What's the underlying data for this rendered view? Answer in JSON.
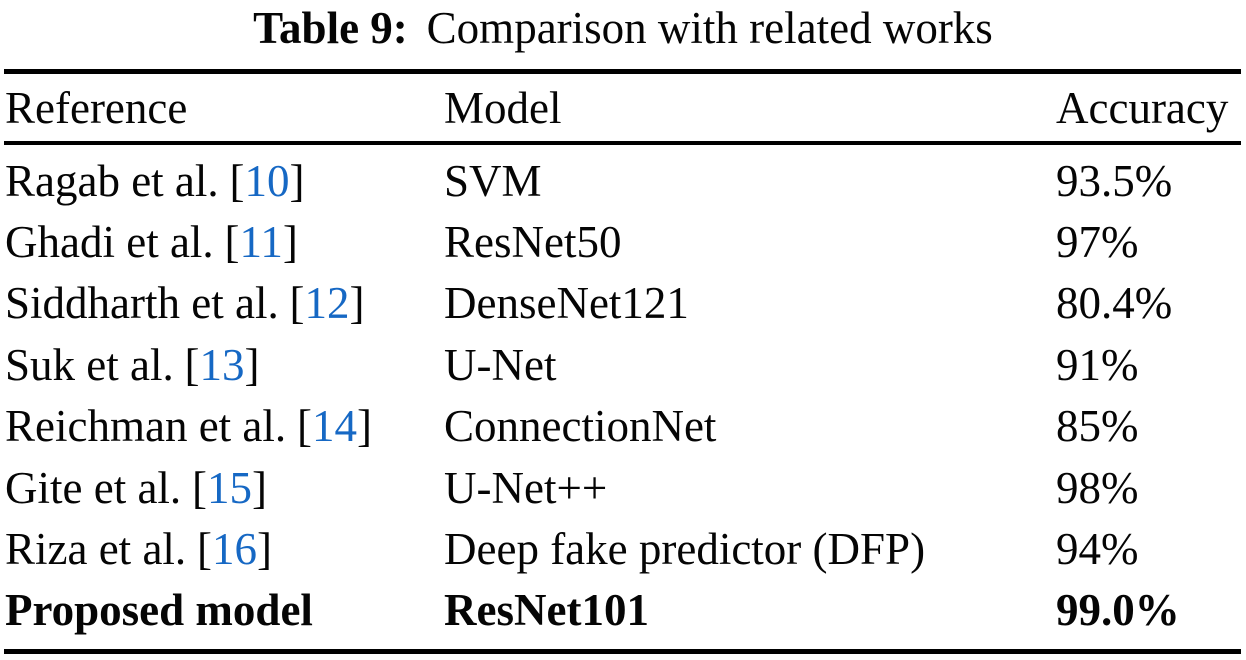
{
  "caption": {
    "label": "Table 9:",
    "text": "Comparison with related works"
  },
  "colors": {
    "citation_blue": "#1668c4",
    "text": "#050505",
    "rule": "#000000",
    "background": "#ffffff"
  },
  "chart_data": {
    "type": "table",
    "title": "Table 9: Comparison with related works",
    "columns": [
      "Reference",
      "Model",
      "Accuracy"
    ],
    "rows": [
      [
        "Ragab et al. [10]",
        "SVM",
        "93.5%"
      ],
      [
        "Ghadi et al. [11]",
        "ResNet50",
        "97%"
      ],
      [
        "Siddharth et al. [12]",
        "DenseNet121",
        "80.4%"
      ],
      [
        "Suk et al. [13]",
        "U-Net",
        "91%"
      ],
      [
        "Reichman et al. [14]",
        "ConnectionNet",
        "85%"
      ],
      [
        "Gite et al. [15]",
        "U-Net++",
        "98%"
      ],
      [
        "Riza et al. [16]",
        "Deep fake predictor (DFP)",
        "94%"
      ],
      [
        "Proposed model",
        "ResNet101",
        "99.0%"
      ]
    ]
  },
  "table": {
    "columns": {
      "reference": "Reference",
      "model": "Model",
      "accuracy": "Accuracy"
    },
    "rows": [
      {
        "reference": "Ragab et al.",
        "cite_open": "[",
        "cite": "10",
        "cite_close": "]",
        "model": "SVM",
        "accuracy": "93.5%"
      },
      {
        "reference": "Ghadi et al.",
        "cite_open": "[",
        "cite": "11",
        "cite_close": "]",
        "model": "ResNet50",
        "accuracy": "97%"
      },
      {
        "reference": "Siddharth et al.",
        "cite_open": "[",
        "cite": "12",
        "cite_close": "]",
        "model": "DenseNet121",
        "accuracy": "80.4%"
      },
      {
        "reference": "Suk et al.",
        "cite_open": "[",
        "cite": "13",
        "cite_close": "]",
        "model": "U-Net",
        "accuracy": "91%"
      },
      {
        "reference": "Reichman et al.",
        "cite_open": "[",
        "cite": "14",
        "cite_close": "]",
        "model": "ConnectionNet",
        "accuracy": "85%"
      },
      {
        "reference": "Gite et al.",
        "cite_open": "[",
        "cite": "15",
        "cite_close": "]",
        "model": "U-Net++",
        "accuracy": "98%"
      },
      {
        "reference": "Riza et al.",
        "cite_open": "[",
        "cite": "16",
        "cite_close": "]",
        "model": "Deep fake predictor (DFP)",
        "accuracy": "94%"
      },
      {
        "reference": "Proposed model",
        "cite_open": "",
        "cite": "",
        "cite_close": "",
        "model": "ResNet101",
        "accuracy": "99.0%"
      }
    ]
  }
}
